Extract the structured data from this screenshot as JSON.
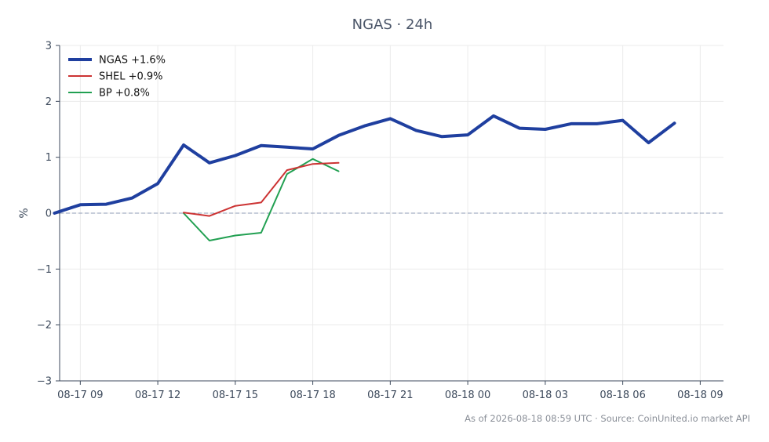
{
  "chart_data": {
    "type": "line",
    "title": "NGAS · 24h",
    "xlabel": "",
    "ylabel": "%",
    "ylim": [
      -3,
      3
    ],
    "yticks": [
      "−3",
      "−2",
      "−1",
      "0",
      "1",
      "2",
      "3"
    ],
    "xticks": [
      "08-17 09",
      "08-17 12",
      "08-17 15",
      "08-17 18",
      "08-17 21",
      "08-18 00",
      "08-18 03",
      "08-18 06",
      "08-18 09"
    ],
    "xlim_hours": [
      -0.8,
      24.9
    ],
    "grid": true,
    "legend_position": "top-left",
    "baseline": 0,
    "series": [
      {
        "name": "NGAS +1.6%",
        "color": "#1f3f9f",
        "x_hours": [
          -1,
          0,
          1,
          2,
          3,
          4,
          5,
          6,
          7,
          8,
          9,
          10,
          11,
          12,
          13,
          14,
          15,
          16,
          17,
          18,
          19,
          20,
          21,
          22,
          23
        ],
        "values": [
          0.0,
          0.15,
          0.16,
          0.27,
          0.53,
          1.22,
          0.9,
          1.03,
          1.21,
          1.18,
          1.15,
          1.39,
          1.56,
          1.69,
          1.48,
          1.37,
          1.4,
          1.74,
          1.52,
          1.5,
          1.6,
          1.6,
          1.66,
          1.26,
          1.61
        ]
      },
      {
        "name": "SHEL +0.9%",
        "color": "#cc3333",
        "x_hours": [
          4,
          5,
          6,
          7,
          8,
          9,
          10
        ],
        "values": [
          0.01,
          -0.05,
          0.13,
          0.19,
          0.77,
          0.88,
          0.9
        ]
      },
      {
        "name": "BP +0.8%",
        "color": "#22a052",
        "x_hours": [
          4,
          5,
          6,
          7,
          8,
          9,
          10
        ],
        "values": [
          0.0,
          -0.49,
          -0.4,
          -0.35,
          0.7,
          0.97,
          0.75
        ]
      }
    ],
    "footer": "As of 2026-08-18 08:59 UTC · Source: CoinUnited.io market API"
  }
}
